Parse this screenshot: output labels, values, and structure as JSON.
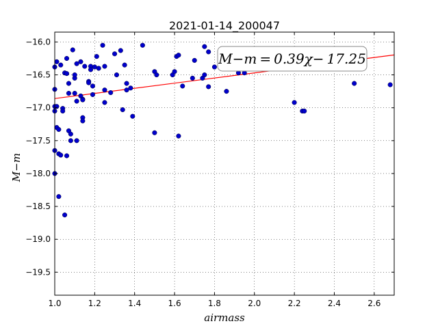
{
  "chart_data": {
    "type": "scatter",
    "title": "2021-01-14_200047",
    "xlabel": "airmass",
    "ylabel": "M−m",
    "xlim": [
      1.0,
      2.7
    ],
    "ylim": [
      -19.85,
      -15.85
    ],
    "y_inverted": true,
    "grid": true,
    "x_ticks": [
      "1.0",
      "1.2",
      "1.4",
      "1.6",
      "1.8",
      "2.0",
      "2.2",
      "2.4",
      "2.6"
    ],
    "y_ticks": [
      "−16.0",
      "−16.5",
      "−17.0",
      "−17.5",
      "−18.0",
      "−18.5",
      "−19.0",
      "−19.5"
    ],
    "annotation": "M−m = 0.39χ− 17.25",
    "fit": {
      "slope": 0.39,
      "intercept": -17.25,
      "color": "#ff0000"
    },
    "point_color": "#0000cc",
    "points": [
      [
        1.0,
        -16.38
      ],
      [
        1.0,
        -16.72
      ],
      [
        1.0,
        -16.98
      ],
      [
        1.0,
        -17.05
      ],
      [
        1.0,
        -17.65
      ],
      [
        1.0,
        -18.0
      ],
      [
        1.01,
        -16.3
      ],
      [
        1.01,
        -16.98
      ],
      [
        1.01,
        -17.3
      ],
      [
        1.02,
        -17.33
      ],
      [
        1.02,
        -17.7
      ],
      [
        1.02,
        -18.35
      ],
      [
        1.03,
        -16.35
      ],
      [
        1.03,
        -17.72
      ],
      [
        1.04,
        -17.01
      ],
      [
        1.04,
        -17.05
      ],
      [
        1.05,
        -16.47
      ],
      [
        1.05,
        -18.63
      ],
      [
        1.06,
        -16.25
      ],
      [
        1.06,
        -16.48
      ],
      [
        1.06,
        -17.73
      ],
      [
        1.07,
        -16.78
      ],
      [
        1.07,
        -16.63
      ],
      [
        1.07,
        -17.35
      ],
      [
        1.08,
        -17.4
      ],
      [
        1.08,
        -17.5
      ],
      [
        1.09,
        -16.12
      ],
      [
        1.1,
        -16.55
      ],
      [
        1.1,
        -16.5
      ],
      [
        1.1,
        -16.78
      ],
      [
        1.11,
        -16.9
      ],
      [
        1.11,
        -16.33
      ],
      [
        1.11,
        -17.5
      ],
      [
        1.13,
        -16.3
      ],
      [
        1.13,
        -16.82
      ],
      [
        1.14,
        -16.87
      ],
      [
        1.14,
        -16.88
      ],
      [
        1.14,
        -17.15
      ],
      [
        1.14,
        -17.2
      ],
      [
        1.15,
        -16.37
      ],
      [
        1.17,
        -16.6
      ],
      [
        1.17,
        -16.62
      ],
      [
        1.18,
        -16.37
      ],
      [
        1.18,
        -16.42
      ],
      [
        1.19,
        -16.67
      ],
      [
        1.19,
        -16.8
      ],
      [
        1.2,
        -16.38
      ],
      [
        1.21,
        -16.22
      ],
      [
        1.22,
        -16.4
      ],
      [
        1.24,
        -16.05
      ],
      [
        1.25,
        -16.37
      ],
      [
        1.25,
        -16.73
      ],
      [
        1.25,
        -16.92
      ],
      [
        1.28,
        -16.77
      ],
      [
        1.3,
        -16.18
      ],
      [
        1.31,
        -16.5
      ],
      [
        1.33,
        -16.13
      ],
      [
        1.34,
        -17.03
      ],
      [
        1.35,
        -16.35
      ],
      [
        1.36,
        -16.63
      ],
      [
        1.36,
        -16.73
      ],
      [
        1.38,
        -16.7
      ],
      [
        1.39,
        -17.13
      ],
      [
        1.44,
        -16.05
      ],
      [
        1.5,
        -16.45
      ],
      [
        1.5,
        -17.38
      ],
      [
        1.51,
        -16.5
      ],
      [
        1.59,
        -16.5
      ],
      [
        1.6,
        -16.45
      ],
      [
        1.61,
        -16.22
      ],
      [
        1.62,
        -16.2
      ],
      [
        1.62,
        -17.43
      ],
      [
        1.64,
        -16.67
      ],
      [
        1.69,
        -16.55
      ],
      [
        1.7,
        -16.28
      ],
      [
        1.74,
        -16.55
      ],
      [
        1.75,
        -16.5
      ],
      [
        1.75,
        -16.07
      ],
      [
        1.77,
        -16.15
      ],
      [
        1.77,
        -16.68
      ],
      [
        1.8,
        -16.38
      ],
      [
        1.86,
        -16.75
      ],
      [
        1.92,
        -16.47
      ],
      [
        1.95,
        -16.47
      ],
      [
        2.2,
        -16.92
      ],
      [
        2.24,
        -17.05
      ],
      [
        2.25,
        -17.05
      ],
      [
        2.5,
        -16.63
      ],
      [
        2.68,
        -16.65
      ]
    ]
  }
}
